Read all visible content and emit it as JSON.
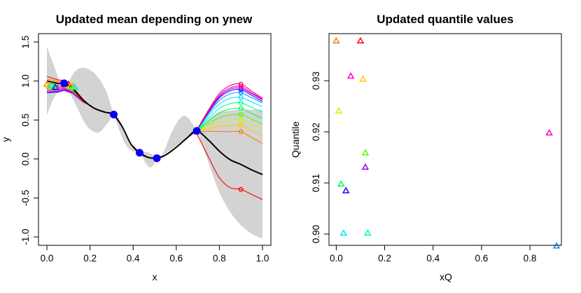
{
  "chart_data": [
    {
      "type": "line",
      "title": "Updated mean depending on ynew",
      "xlabel": "x",
      "ylabel": "y",
      "xlim": [
        0,
        1
      ],
      "ylim": [
        -1,
        1.5
      ],
      "x_ticks": [
        "0.0",
        "0.2",
        "0.4",
        "0.6",
        "0.8",
        "1.0"
      ],
      "y_ticks": [
        "-1.0",
        "-0.5",
        "0.0",
        "0.5",
        "1.0",
        "1.5"
      ],
      "band_color": "#d3d3d3",
      "band_upper": [
        [
          0,
          1.44
        ],
        [
          0.03,
          1.22
        ],
        [
          0.06,
          1.0
        ],
        [
          0.08,
          0.97
        ],
        [
          0.1,
          0.99
        ],
        [
          0.13,
          1.12
        ],
        [
          0.17,
          1.17
        ],
        [
          0.22,
          1.1
        ],
        [
          0.27,
          0.9
        ],
        [
          0.31,
          0.57
        ],
        [
          0.35,
          0.27
        ],
        [
          0.38,
          0.13
        ],
        [
          0.41,
          0.09
        ],
        [
          0.43,
          0.08
        ],
        [
          0.46,
          0.09
        ],
        [
          0.48,
          0.07
        ],
        [
          0.5,
          0.03
        ],
        [
          0.51,
          0.0
        ],
        [
          0.54,
          0.08
        ],
        [
          0.58,
          0.35
        ],
        [
          0.62,
          0.53
        ],
        [
          0.65,
          0.54
        ],
        [
          0.68,
          0.43
        ],
        [
          0.695,
          0.36
        ],
        [
          0.72,
          0.42
        ],
        [
          0.76,
          0.53
        ],
        [
          0.8,
          0.6
        ],
        [
          0.85,
          0.62
        ],
        [
          0.9,
          0.63
        ],
        [
          1.0,
          0.63
        ]
      ],
      "band_lower": [
        [
          0,
          0.56
        ],
        [
          0.03,
          0.77
        ],
        [
          0.06,
          0.9
        ],
        [
          0.08,
          0.96
        ],
        [
          0.1,
          0.88
        ],
        [
          0.13,
          0.72
        ],
        [
          0.17,
          0.49
        ],
        [
          0.2,
          0.38
        ],
        [
          0.24,
          0.34
        ],
        [
          0.28,
          0.45
        ],
        [
          0.31,
          0.56
        ],
        [
          0.34,
          0.44
        ],
        [
          0.37,
          0.26
        ],
        [
          0.4,
          0.13
        ],
        [
          0.43,
          0.08
        ],
        [
          0.46,
          -0.06
        ],
        [
          0.48,
          -0.11
        ],
        [
          0.5,
          -0.05
        ],
        [
          0.51,
          0.0
        ],
        [
          0.55,
          0.07
        ],
        [
          0.6,
          0.17
        ],
        [
          0.65,
          0.28
        ],
        [
          0.695,
          0.36
        ],
        [
          0.72,
          0.18
        ],
        [
          0.76,
          -0.13
        ],
        [
          0.8,
          -0.43
        ],
        [
          0.85,
          -0.68
        ],
        [
          0.9,
          -0.85
        ],
        [
          0.95,
          -0.96
        ],
        [
          1.0,
          -1.02
        ]
      ],
      "observed_points": [
        [
          0.08,
          0.97
        ],
        [
          0.31,
          0.57
        ],
        [
          0.43,
          0.08
        ],
        [
          0.51,
          0.01
        ],
        [
          0.695,
          0.36
        ]
      ],
      "observed_color": "#0000ff",
      "base_mean": {
        "color": "#000000",
        "points": [
          [
            0,
            1.0
          ],
          [
            0.05,
            0.97
          ],
          [
            0.08,
            0.97
          ],
          [
            0.12,
            0.9
          ],
          [
            0.17,
            0.75
          ],
          [
            0.22,
            0.65
          ],
          [
            0.27,
            0.6
          ],
          [
            0.31,
            0.57
          ],
          [
            0.35,
            0.41
          ],
          [
            0.39,
            0.19
          ],
          [
            0.43,
            0.08
          ],
          [
            0.47,
            0.02
          ],
          [
            0.51,
            0.01
          ],
          [
            0.55,
            0.05
          ],
          [
            0.6,
            0.15
          ],
          [
            0.65,
            0.27
          ],
          [
            0.695,
            0.36
          ],
          [
            0.75,
            0.24
          ],
          [
            0.8,
            0.1
          ],
          [
            0.85,
            -0.01
          ],
          [
            0.9,
            -0.07
          ],
          [
            0.95,
            -0.14
          ],
          [
            1.0,
            -0.2
          ]
        ]
      },
      "ynew_x": 0.9,
      "ynew_series": [
        {
          "name": "red",
          "color": "#ff0000",
          "ynew": -0.39,
          "y_end": -0.52,
          "y_left": 1.06
        },
        {
          "name": "orange",
          "color": "#ff7f00",
          "ynew": 0.35,
          "y_end": 0.2,
          "y_left": 1.03
        },
        {
          "name": "yellow",
          "color": "#ffcc00",
          "ynew": 0.43,
          "y_end": 0.3,
          "y_left": 1.01
        },
        {
          "name": "yellow-green",
          "color": "#bfff00",
          "ynew": 0.5,
          "y_end": 0.38,
          "y_left": 0.99
        },
        {
          "name": "green",
          "color": "#55ff00",
          "ynew": 0.57,
          "y_end": 0.45,
          "y_left": 0.96
        },
        {
          "name": "spring-green",
          "color": "#00ff40",
          "ynew": 0.65,
          "y_end": 0.52,
          "y_left": 0.93
        },
        {
          "name": "aquamarine",
          "color": "#00ffaa",
          "ynew": 0.72,
          "y_end": 0.6,
          "y_left": 0.9
        },
        {
          "name": "cyan",
          "color": "#00e5ff",
          "ynew": 0.79,
          "y_end": 0.67,
          "y_left": 0.88
        },
        {
          "name": "sky-blue",
          "color": "#0099ff",
          "ynew": 0.85,
          "y_end": 0.72,
          "y_left": 0.86
        },
        {
          "name": "blue",
          "color": "#2b00ff",
          "ynew": 0.89,
          "y_end": 0.74,
          "y_left": 0.85
        },
        {
          "name": "violet",
          "color": "#9900ff",
          "ynew": 0.91,
          "y_end": 0.76,
          "y_left": 0.86
        },
        {
          "name": "magenta",
          "color": "#ff00cc",
          "ynew": 0.93,
          "y_end": 0.77,
          "y_left": 0.88
        },
        {
          "name": "rose",
          "color": "#ff0055",
          "ynew": 0.96,
          "y_end": 0.78,
          "y_left": 0.9
        }
      ],
      "left_triangles": [
        {
          "x": 0.0,
          "y": 0.96,
          "color": "#ff7f00"
        },
        {
          "x": 0.01,
          "y": 0.94,
          "color": "#ffcc00"
        },
        {
          "x": 0.02,
          "y": 0.93,
          "color": "#bfff00"
        },
        {
          "x": 0.03,
          "y": 0.92,
          "color": "#55ff00"
        },
        {
          "x": 0.035,
          "y": 0.93,
          "color": "#00ff40"
        },
        {
          "x": 0.02,
          "y": 0.94,
          "color": "#00e5ff"
        },
        {
          "x": 0.04,
          "y": 0.92,
          "color": "#2b00ff"
        },
        {
          "x": 0.06,
          "y": 0.95,
          "color": "#ff00cc"
        },
        {
          "x": 0.1,
          "y": 0.96,
          "color": "#ff0000"
        },
        {
          "x": 0.11,
          "y": 0.94,
          "color": "#ffcc00"
        },
        {
          "x": 0.12,
          "y": 0.93,
          "color": "#9900ff"
        },
        {
          "x": 0.13,
          "y": 0.92,
          "color": "#00e5ff"
        },
        {
          "x": 0.12,
          "y": 0.93,
          "color": "#55ff00"
        }
      ]
    },
    {
      "type": "scatter",
      "title": "Updated quantile values",
      "xlabel": "xQ",
      "ylabel": "Quantile",
      "xlim": [
        -0.03,
        0.93
      ],
      "ylim": [
        0.8978,
        0.9392
      ],
      "x_ticks": [
        "0.0",
        "0.2",
        "0.4",
        "0.6",
        "0.8"
      ],
      "y_ticks": [
        "0.90",
        "0.91",
        "0.92",
        "0.93"
      ],
      "points": [
        {
          "x": 0.0,
          "y": 0.9378,
          "color": "#ff7f00"
        },
        {
          "x": 0.1,
          "y": 0.9378,
          "color": "#ff0000"
        },
        {
          "x": 0.06,
          "y": 0.9309,
          "color": "#ff00cc"
        },
        {
          "x": 0.11,
          "y": 0.9303,
          "color": "#ffcc00"
        },
        {
          "x": 0.01,
          "y": 0.9241,
          "color": "#bfff00"
        },
        {
          "x": 0.88,
          "y": 0.9198,
          "color": "#ff00cc"
        },
        {
          "x": 0.12,
          "y": 0.9159,
          "color": "#55ff00"
        },
        {
          "x": 0.12,
          "y": 0.9131,
          "color": "#9900ff"
        },
        {
          "x": 0.02,
          "y": 0.9098,
          "color": "#00ff40"
        },
        {
          "x": 0.04,
          "y": 0.9085,
          "color": "#2b00ff"
        },
        {
          "x": 0.03,
          "y": 0.9002,
          "color": "#00e5ff"
        },
        {
          "x": 0.13,
          "y": 0.9002,
          "color": "#00ffaa"
        },
        {
          "x": 0.91,
          "y": 0.8977,
          "color": "#0099ff"
        }
      ]
    }
  ]
}
